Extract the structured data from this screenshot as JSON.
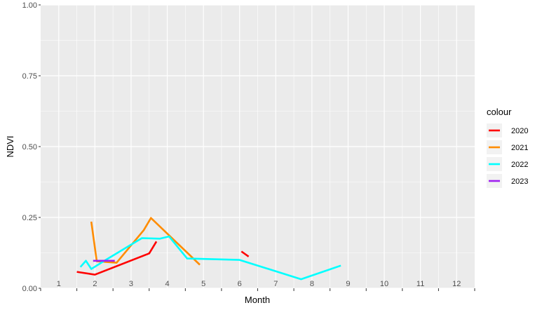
{
  "chart_data": {
    "type": "line",
    "xlabel": "Month",
    "ylabel": "NDVI",
    "ylim": [
      0,
      1
    ],
    "xlim": [
      0.5,
      12.5
    ],
    "x_ticks": [
      "1",
      "2",
      "3",
      "4",
      "5",
      "6",
      "7",
      "8",
      "9",
      "10",
      "11",
      "12"
    ],
    "y_ticks": [
      "0.00",
      "0.25",
      "0.50",
      "0.75",
      "1.00"
    ],
    "grid": true,
    "legend": {
      "title": "colour",
      "position": "right"
    },
    "series": [
      {
        "name": "2020",
        "color": "#ff0000",
        "segments": [
          [
            [
              1.5,
              0.058
            ],
            [
              2.0,
              0.048
            ],
            [
              3.5,
              0.123
            ],
            [
              3.7,
              0.165
            ]
          ],
          [
            [
              6.05,
              0.13
            ],
            [
              6.25,
              0.112
            ]
          ]
        ]
      },
      {
        "name": "2021",
        "color": "#ff8c00",
        "segments": [
          [
            [
              1.9,
              0.235
            ],
            [
              2.05,
              0.095
            ],
            [
              2.6,
              0.09
            ],
            [
              3.35,
              0.205
            ],
            [
              3.55,
              0.248
            ],
            [
              4.9,
              0.083
            ]
          ]
        ]
      },
      {
        "name": "2022",
        "color": "#00ffff",
        "segments": [
          [
            [
              1.6,
              0.075
            ],
            [
              1.75,
              0.097
            ],
            [
              1.9,
              0.068
            ],
            [
              2.3,
              0.1
            ],
            [
              3.3,
              0.177
            ],
            [
              3.8,
              0.175
            ],
            [
              4.05,
              0.183
            ],
            [
              4.55,
              0.105
            ],
            [
              6.0,
              0.1
            ],
            [
              7.7,
              0.032
            ],
            [
              8.8,
              0.08
            ]
          ]
        ]
      },
      {
        "name": "2023",
        "color": "#a020f0",
        "segments": [
          [
            [
              1.95,
              0.097
            ],
            [
              2.55,
              0.097
            ]
          ]
        ]
      }
    ]
  }
}
